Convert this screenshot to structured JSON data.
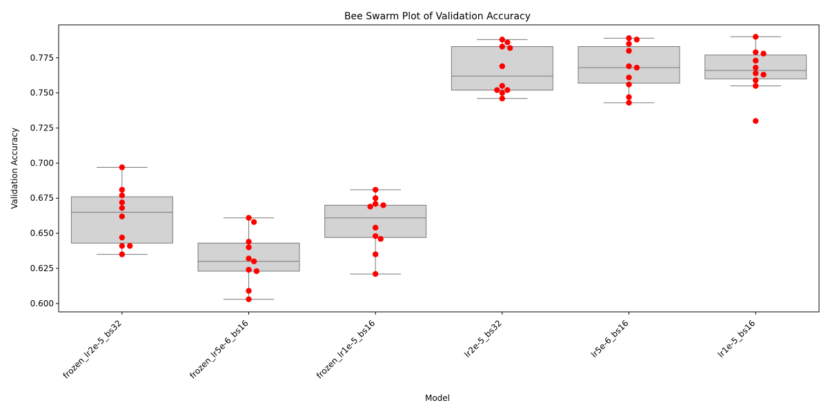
{
  "chart_data": {
    "type": "box-swarm",
    "title": "Bee Swarm Plot of Validation Accuracy",
    "xlabel": "Model",
    "ylabel": "Validation Accuracy",
    "ylim": [
      0.594,
      0.7985
    ],
    "yticks": [
      0.6,
      0.625,
      0.65,
      0.675,
      0.7,
      0.725,
      0.75,
      0.775
    ],
    "ytick_labels": [
      "0.600",
      "0.625",
      "0.650",
      "0.675",
      "0.700",
      "0.725",
      "0.750",
      "0.775"
    ],
    "categories": [
      "frozen_lr2e-5_bs32",
      "frozen_lr5e-6_bs16",
      "frozen_lr1e-5_bs16",
      "lr2e-5_bs32",
      "lr5e-6_bs16",
      "lr1e-5_bs16"
    ],
    "box_color": "#d3d3d3",
    "edge_color": "#777777",
    "point_color": "#ff0000",
    "boxes": [
      {
        "whisker_low": 0.635,
        "q1": 0.643,
        "median": 0.665,
        "q3": 0.676,
        "whisker_high": 0.697
      },
      {
        "whisker_low": 0.603,
        "q1": 0.623,
        "median": 0.63,
        "q3": 0.643,
        "whisker_high": 0.661
      },
      {
        "whisker_low": 0.621,
        "q1": 0.647,
        "median": 0.661,
        "q3": 0.67,
        "whisker_high": 0.681
      },
      {
        "whisker_low": 0.746,
        "q1": 0.752,
        "median": 0.762,
        "q3": 0.783,
        "whisker_high": 0.788
      },
      {
        "whisker_low": 0.743,
        "q1": 0.757,
        "median": 0.768,
        "q3": 0.783,
        "whisker_high": 0.789
      },
      {
        "whisker_low": 0.755,
        "q1": 0.76,
        "median": 0.766,
        "q3": 0.777,
        "whisker_high": 0.79
      }
    ],
    "points": [
      [
        0.697,
        0.681,
        0.677,
        0.672,
        0.668,
        0.662,
        0.647,
        0.641,
        0.641,
        0.635
      ],
      [
        0.661,
        0.658,
        0.644,
        0.64,
        0.632,
        0.63,
        0.624,
        0.623,
        0.609,
        0.603
      ],
      [
        0.681,
        0.675,
        0.671,
        0.67,
        0.669,
        0.654,
        0.648,
        0.646,
        0.635,
        0.621
      ],
      [
        0.788,
        0.786,
        0.783,
        0.782,
        0.769,
        0.755,
        0.752,
        0.752,
        0.75,
        0.746
      ],
      [
        0.789,
        0.788,
        0.785,
        0.78,
        0.769,
        0.768,
        0.761,
        0.756,
        0.747,
        0.743
      ],
      [
        0.79,
        0.779,
        0.778,
        0.773,
        0.768,
        0.764,
        0.763,
        0.759,
        0.755,
        0.73
      ]
    ],
    "grid": false,
    "legend": "none"
  }
}
